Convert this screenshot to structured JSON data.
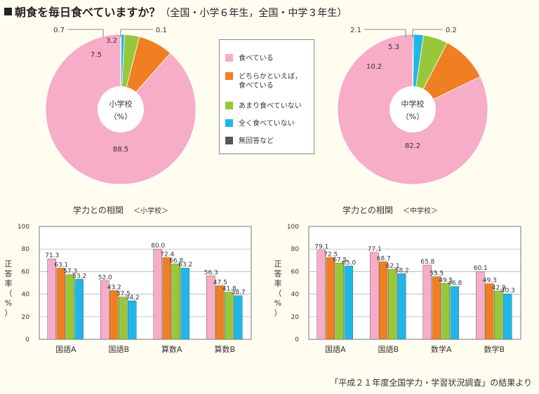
{
  "title": {
    "main": "朝食を毎日食べていますか？",
    "sub": "（全国・小学６年生，全国・中学３年生）"
  },
  "colors": {
    "everyday": "#f7acc8",
    "mostly": "#f07f22",
    "rarely": "#97c83a",
    "never": "#20b6e8",
    "noanswer": "#555555",
    "background": "#fffdf0"
  },
  "legend": [
    {
      "label": "食べている",
      "color": "#f7acc8"
    },
    {
      "label": "どちらかといえば，\n食べている",
      "color": "#f07f22"
    },
    {
      "label": "あまり食べていない",
      "color": "#97c83a"
    },
    {
      "label": "全く食べていない",
      "color": "#20b6e8"
    },
    {
      "label": "無回答など",
      "color": "#555555"
    }
  ],
  "source": "「平成２１年度全国学力・学習状況調査」の結果より",
  "chart_data": [
    {
      "type": "pie",
      "center_label": "小学校",
      "unit": "（%）",
      "slices": [
        {
          "label": "食べている",
          "value": 88.5
        },
        {
          "label": "どちらかといえば，食べている",
          "value": 7.5
        },
        {
          "label": "あまり食べていない",
          "value": 3.2
        },
        {
          "label": "全く食べていない",
          "value": 0.7
        },
        {
          "label": "無回答など",
          "value": 0.1
        }
      ]
    },
    {
      "type": "pie",
      "center_label": "中学校",
      "unit": "（%）",
      "slices": [
        {
          "label": "食べている",
          "value": 82.2
        },
        {
          "label": "どちらかといえば，食べている",
          "value": 10.2
        },
        {
          "label": "あまり食べていない",
          "value": 5.3
        },
        {
          "label": "全く食べていない",
          "value": 2.1
        },
        {
          "label": "無回答など",
          "value": 0.2
        }
      ]
    },
    {
      "type": "bar",
      "title": "学力との相関",
      "subtitle": "＜小学校＞",
      "ylabel": "正答率（%）",
      "ylim": [
        0,
        100
      ],
      "yticks": [
        0,
        20,
        40,
        60,
        80,
        100
      ],
      "categories": [
        "国語A",
        "国語B",
        "算数A",
        "算数B"
      ],
      "series": [
        {
          "name": "食べている",
          "values": [
            71.3,
            52.0,
            80.0,
            56.3
          ]
        },
        {
          "name": "どちらかといえば，食べている",
          "values": [
            63.1,
            43.2,
            72.4,
            47.5
          ]
        },
        {
          "name": "あまり食べていない",
          "values": [
            57.3,
            37.5,
            66.8,
            41.8
          ]
        },
        {
          "name": "全く食べていない",
          "values": [
            53.2,
            34.2,
            63.2,
            38.7
          ]
        }
      ]
    },
    {
      "type": "bar",
      "title": "学力との相関",
      "subtitle": "＜中学校＞",
      "ylabel": "正答率（%）",
      "ylim": [
        0,
        100
      ],
      "yticks": [
        0,
        20,
        40,
        60,
        80,
        100
      ],
      "categories": [
        "国語A",
        "国語B",
        "数学A",
        "数学B"
      ],
      "series": [
        {
          "name": "食べている",
          "values": [
            79.1,
            77.1,
            65.8,
            60.1
          ]
        },
        {
          "name": "どちらかといえば，食べている",
          "values": [
            72.5,
            68.7,
            55.5,
            49.3
          ]
        },
        {
          "name": "あまり食べていない",
          "values": [
            67.5,
            62.1,
            49.5,
            42.9
          ]
        },
        {
          "name": "全く食べていない",
          "values": [
            65.0,
            58.2,
            46.8,
            40.3
          ]
        }
      ]
    }
  ]
}
